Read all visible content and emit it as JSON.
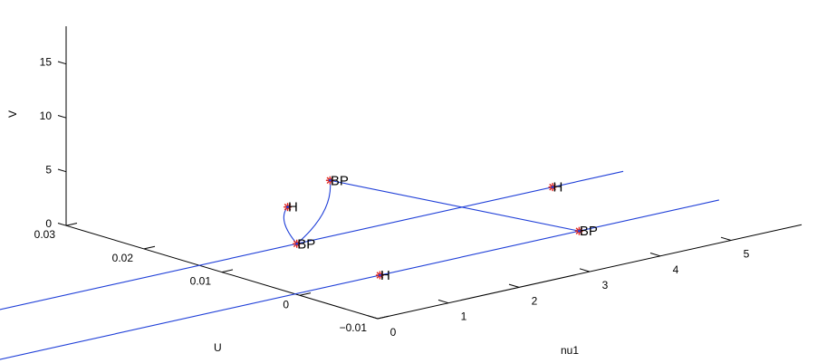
{
  "chart_data": {
    "type": "line",
    "title": "",
    "xlabel": "nu1",
    "ylabel": "U",
    "zlabel": "V",
    "x_ticks": [
      "0",
      "1",
      "2",
      "3",
      "4",
      "5"
    ],
    "y_ticks": [
      "−0.01",
      "0",
      "0.01",
      "0.02",
      "0.03"
    ],
    "z_ticks": [
      "0",
      "5",
      "10",
      "15"
    ],
    "xlim": [
      0,
      6
    ],
    "ylim": [
      -0.01,
      0.03
    ],
    "zlim": [
      0,
      18
    ],
    "grid": false,
    "series": [
      {
        "values": [
          [
            -5.5,
            0.0129,
            0
          ],
          [
            6,
            0.0129,
            0
          ]
        ]
      },
      {
        "values": [
          [
            -5.5,
            0.0006,
            0
          ],
          [
            6,
            0.0006,
            0
          ]
        ]
      },
      {
        "values": [
          [
            4.02,
            0.0006,
            0
          ],
          [
            1.85,
            0.0129,
            5.2
          ],
          [
            1.38,
            0.0129,
            0
          ],
          [
            1.25,
            0.0129,
            3.6
          ]
        ]
      }
    ],
    "points": [
      {
        "label": "BP",
        "x": 1.85,
        "y": 0.0129,
        "z": 5.2
      },
      {
        "label": "H",
        "x": 1.25,
        "y": 0.0129,
        "z": 3.6
      },
      {
        "label": "BP",
        "x": 1.38,
        "y": 0.0129,
        "z": 0
      },
      {
        "label": "BP",
        "x": 4.02,
        "y": 0.0006,
        "z": 0
      },
      {
        "label": "H",
        "x": 5.0,
        "y": 0.0129,
        "z": 0
      },
      {
        "label": "H",
        "x": 1.2,
        "y": 0.0006,
        "z": 0
      }
    ]
  }
}
